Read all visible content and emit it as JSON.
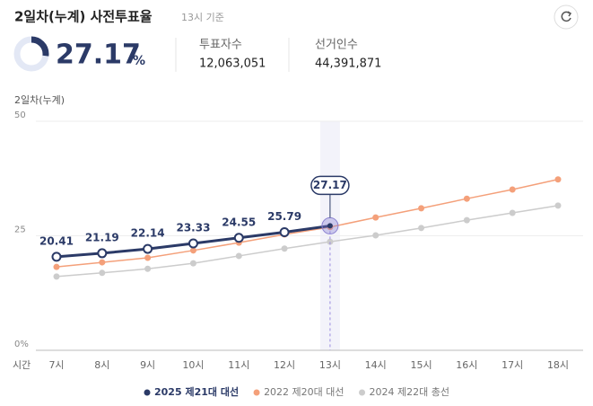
{
  "header": {
    "title": "2일차(누계) 사전투표율",
    "basis": "13시 기준"
  },
  "stats": {
    "rate": 27.17,
    "unit": "%",
    "voters_label": "투표자수",
    "voters": "12,063,051",
    "electorate_label": "선거인수",
    "electorate": "44,391,871"
  },
  "chart_data": {
    "type": "line",
    "subtitle": "2일차(누계)",
    "xlabel": "시간",
    "categories": [
      "7시",
      "8시",
      "9시",
      "10시",
      "11시",
      "12시",
      "13시",
      "14시",
      "15시",
      "16시",
      "17시",
      "18시"
    ],
    "ylim": [
      0,
      50
    ],
    "yticks": [
      50,
      25,
      {
        "value": 0,
        "label": "0%"
      }
    ],
    "grid": true,
    "highlight": "13시",
    "series": [
      {
        "name": "2025 제21대 대선",
        "color": "#2b3a67",
        "values": [
          20.41,
          21.19,
          22.14,
          23.33,
          24.55,
          25.79,
          27.17,
          null,
          null,
          null,
          null,
          null
        ]
      },
      {
        "name": "2022 제20대 대선",
        "color": "#f4a07a",
        "values": [
          18.2,
          19.2,
          20.2,
          21.8,
          23.5,
          25.3,
          26.9,
          29.0,
          31.0,
          33.1,
          35.1,
          37.3
        ]
      },
      {
        "name": "2024 제22대 총선",
        "color": "#cccccc",
        "values": [
          16.1,
          16.9,
          17.8,
          19.0,
          20.6,
          22.2,
          23.7,
          25.1,
          26.7,
          28.4,
          30.0,
          31.6
        ]
      }
    ]
  }
}
